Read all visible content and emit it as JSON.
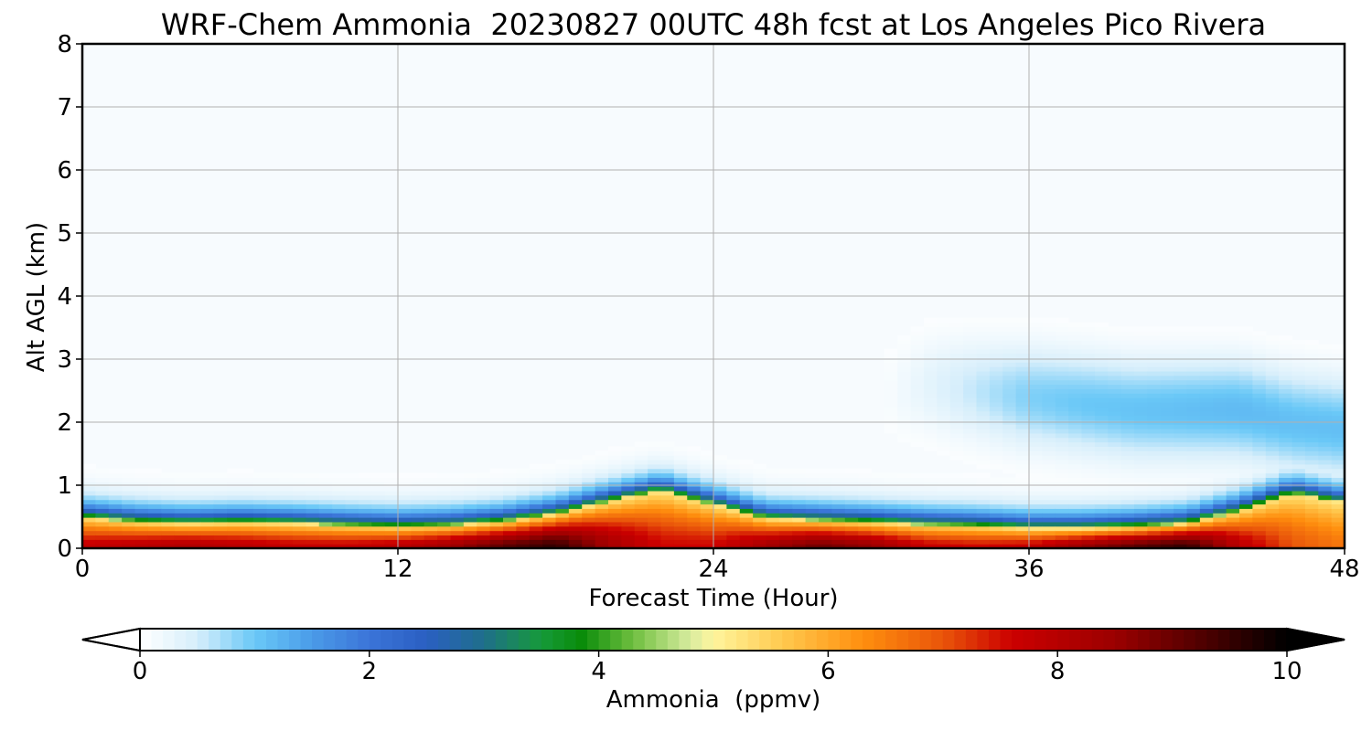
{
  "chart_data": {
    "type": "heatmap",
    "title": "WRF-Chem Ammonia  20230827 00UTC 48h fcst at Los Angeles Pico Rivera",
    "xlabel": "Forecast Time (Hour)",
    "ylabel": "Alt AGL (km)",
    "xlim": [
      0,
      48
    ],
    "ylim": [
      0,
      8
    ],
    "x_ticks": [
      "0",
      "12",
      "24",
      "36",
      "48"
    ],
    "y_ticks": [
      "0",
      "1",
      "2",
      "3",
      "4",
      "5",
      "6",
      "7",
      "8"
    ],
    "grid": true,
    "colorbar": {
      "label": "Ammonia  (ppmv)",
      "range": [
        0,
        10
      ],
      "ticks": [
        "0",
        "2",
        "4",
        "6",
        "8",
        "10"
      ],
      "extend": "both",
      "stops": [
        {
          "v": 0.0,
          "c": "#ffffff"
        },
        {
          "v": 0.5,
          "c": "#d6eefb"
        },
        {
          "v": 1.0,
          "c": "#6ac8f7"
        },
        {
          "v": 1.5,
          "c": "#4a9be8"
        },
        {
          "v": 2.0,
          "c": "#3b74d8"
        },
        {
          "v": 2.5,
          "c": "#2a5fc2"
        },
        {
          "v": 3.0,
          "c": "#1f6f8a"
        },
        {
          "v": 3.5,
          "c": "#169a3a"
        },
        {
          "v": 3.85,
          "c": "#0a8c0a"
        },
        {
          "v": 4.3,
          "c": "#6fbf3f"
        },
        {
          "v": 4.8,
          "c": "#d8eca0"
        },
        {
          "v": 5.0,
          "c": "#fff59d"
        },
        {
          "v": 5.6,
          "c": "#ffc94f"
        },
        {
          "v": 6.3,
          "c": "#ff8f0e"
        },
        {
          "v": 7.0,
          "c": "#e9550a"
        },
        {
          "v": 7.6,
          "c": "#cc0000"
        },
        {
          "v": 8.5,
          "c": "#9b0000"
        },
        {
          "v": 9.3,
          "c": "#4b0000"
        },
        {
          "v": 10.0,
          "c": "#000000"
        }
      ]
    },
    "field": {
      "x": [
        0,
        2,
        4,
        6,
        8,
        10,
        12,
        14,
        16,
        18,
        20,
        22,
        24,
        26,
        28,
        30,
        32,
        34,
        36,
        38,
        40,
        42,
        44,
        46,
        48
      ],
      "y": [
        0,
        0.25,
        0.5,
        0.75,
        1.0,
        1.25,
        1.5,
        1.75,
        2.0,
        2.25,
        2.5,
        2.75,
        3.0,
        3.25,
        3.5,
        3.75,
        4.0,
        4.5,
        5,
        6,
        7,
        8
      ],
      "surface_max_ppmv": [
        7.8,
        8.0,
        8.2,
        8.0,
        7.8,
        7.8,
        8.0,
        8.5,
        9.2,
        9.6,
        8.4,
        7.6,
        7.6,
        8.4,
        9.0,
        8.6,
        7.8,
        7.6,
        7.8,
        8.6,
        9.2,
        9.6,
        8.0,
        7.0,
        6.6
      ],
      "mixed_layer_top_km": [
        0.5,
        0.43,
        0.4,
        0.42,
        0.4,
        0.37,
        0.35,
        0.37,
        0.43,
        0.55,
        0.75,
        0.92,
        0.7,
        0.48,
        0.45,
        0.42,
        0.38,
        0.36,
        0.32,
        0.32,
        0.35,
        0.4,
        0.6,
        0.88,
        0.72
      ],
      "aloft_layer_peak_ppmv": [
        0,
        0,
        0,
        0,
        0,
        0,
        0,
        0,
        0,
        0,
        0,
        0,
        0,
        0,
        0,
        0,
        0.3,
        0.6,
        0.9,
        1.0,
        1.05,
        1.1,
        1.15,
        1.1,
        1.1
      ],
      "aloft_layer_center_km": [
        2.4,
        2.4,
        2.4,
        2.4,
        2.4,
        2.4,
        2.4,
        2.4,
        2.4,
        2.4,
        2.4,
        2.4,
        2.4,
        2.4,
        2.4,
        2.4,
        2.6,
        2.5,
        2.4,
        2.3,
        2.2,
        2.2,
        2.2,
        2.0,
        1.9
      ]
    }
  }
}
